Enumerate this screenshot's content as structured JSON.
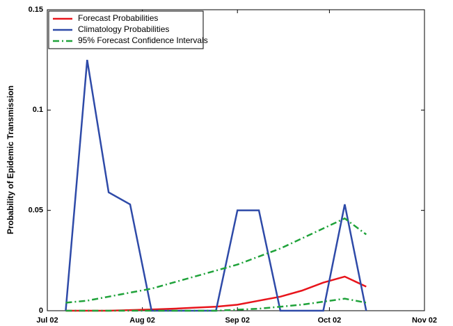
{
  "chart_data": {
    "type": "line",
    "y_label": "Probability of Epidemic Transmission",
    "x": [
      6,
      13,
      20,
      27,
      34,
      41,
      48,
      55,
      62,
      69,
      76,
      83,
      90,
      97,
      104
    ],
    "xlim": [
      0,
      123
    ],
    "xticks": [
      {
        "value": 0,
        "label": "Jul 02"
      },
      {
        "value": 31,
        "label": "Aug 02"
      },
      {
        "value": 62,
        "label": "Sep 02"
      },
      {
        "value": 92,
        "label": "Oct 02"
      },
      {
        "value": 123,
        "label": "Nov 02"
      }
    ],
    "ylim": [
      0,
      0.15
    ],
    "yticks": [
      0,
      0.05,
      0.1,
      0.15
    ],
    "legend": "upper-left",
    "series": [
      {
        "name": "Forecast Probabilities",
        "color": "#e8141b",
        "dash": "solid",
        "values": [
          0,
          0,
          0,
          0.0003,
          0.0006,
          0.001,
          0.0015,
          0.002,
          0.003,
          0.005,
          0.007,
          0.01,
          0.014,
          0.017,
          0.012
        ]
      },
      {
        "name": "Climatology Probabilities",
        "color": "#2e4aa8",
        "dash": "solid",
        "values": [
          0,
          0.125,
          0.059,
          0.053,
          0,
          0,
          0,
          0,
          0.05,
          0.05,
          0,
          0,
          0,
          0.053,
          0
        ]
      },
      {
        "name": "95% Forecast Confidence Intervals",
        "color": "#1fa23a",
        "dash": "dashdot",
        "values": [
          0.004,
          0.005,
          0.007,
          0.009,
          0.011,
          0.014,
          0.017,
          0.02,
          0.023,
          0.027,
          0.031,
          0.036,
          0.041,
          0.046,
          0.038
        ]
      },
      {
        "color": "#1fa23a",
        "dash": "dashdot",
        "values": [
          0,
          0,
          0,
          0,
          0,
          0,
          0,
          0,
          0.0005,
          0.001,
          0.002,
          0.003,
          0.0045,
          0.006,
          0.004
        ]
      }
    ]
  }
}
